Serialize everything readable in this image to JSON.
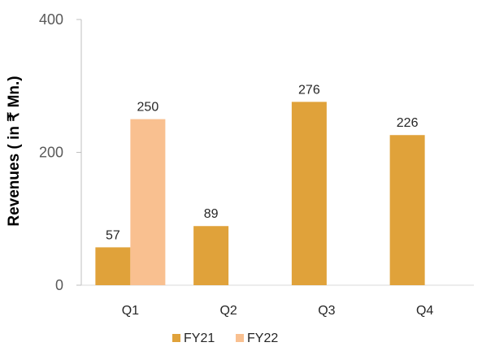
{
  "chart_data": {
    "type": "bar",
    "title": "",
    "xlabel": "",
    "ylabel": "Revenues ( in ₹ Mn.)",
    "categories": [
      "Q1",
      "Q2",
      "Q3",
      "Q4"
    ],
    "yticks": [
      "0",
      "200",
      "400"
    ],
    "ylim": [
      0,
      400
    ],
    "grid": false,
    "legend_position": "bottom",
    "series": [
      {
        "name": "FY21",
        "color": "#E0A23A",
        "values": [
          57,
          89,
          276,
          226
        ],
        "labels": [
          "57",
          "89",
          "276",
          "226"
        ]
      },
      {
        "name": "FY22",
        "color": "#F9C090",
        "values": [
          250,
          null,
          null,
          null
        ],
        "labels": [
          "250",
          "",
          "",
          ""
        ]
      }
    ]
  }
}
